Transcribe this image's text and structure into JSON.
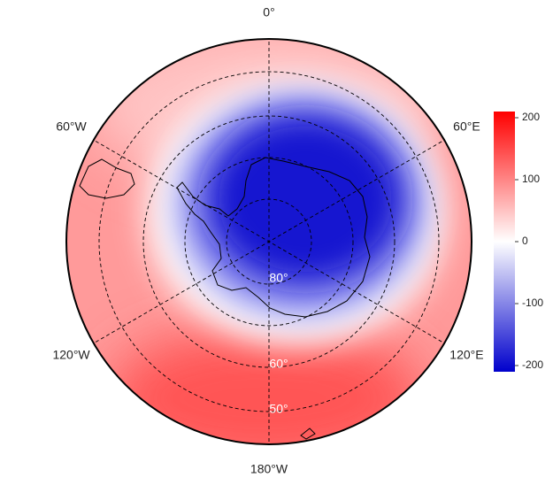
{
  "chart_data": {
    "type": "map",
    "lon_labels": [
      "0°",
      "60°E",
      "120°E",
      "180°W",
      "120°W",
      "60°W"
    ],
    "lat_labels": [
      "80°",
      "60°",
      "50°"
    ],
    "colorbar": {
      "ylim": [
        -210,
        210
      ],
      "yticks": [
        -200,
        -100,
        0,
        100,
        200
      ],
      "colors": [
        "#0000cc",
        "#ffffff",
        "#ff0000"
      ]
    }
  }
}
